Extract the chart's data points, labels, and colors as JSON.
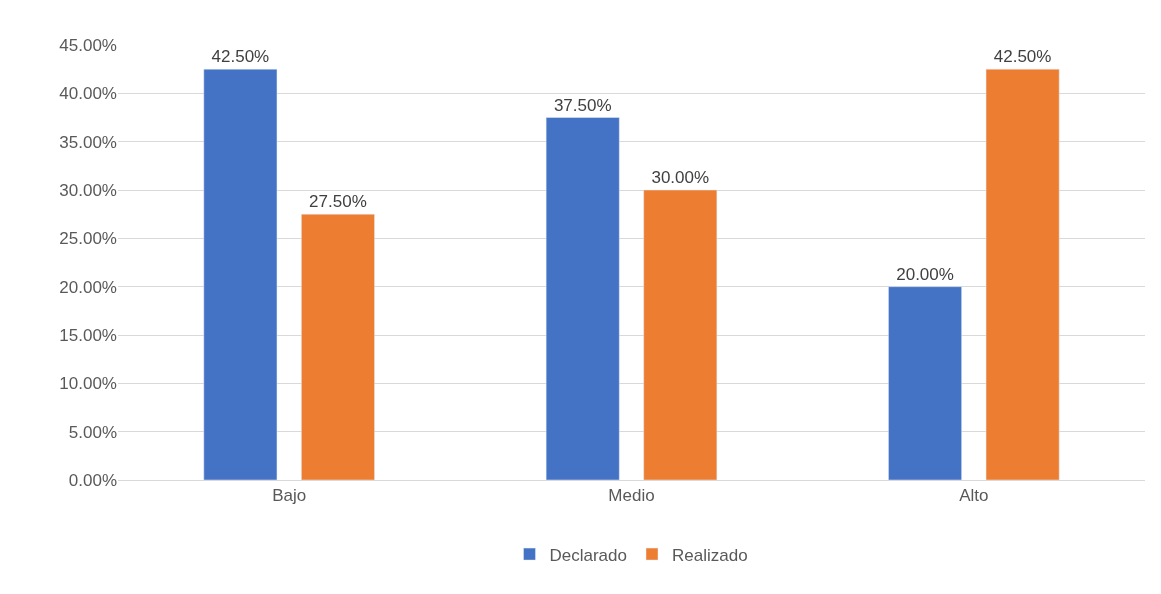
{
  "chart_data": {
    "type": "bar",
    "categories": [
      "Bajo",
      "Medio",
      "Alto"
    ],
    "series": [
      {
        "name": "Declarado",
        "color": "#4472c4",
        "values": [
          42.5,
          37.5,
          20
        ],
        "value_labels": [
          "42.50%",
          "37.50%",
          "20.00%"
        ]
      },
      {
        "name": "Realizado",
        "color": "#ed7d31",
        "values": [
          27.5,
          30,
          42.5
        ],
        "value_labels": [
          "27.50%",
          "30.00%",
          "42.50%"
        ]
      }
    ],
    "ylim": [
      0,
      45
    ],
    "yticks": [
      {
        "value": 0,
        "label": "0.00%"
      },
      {
        "value": 5,
        "label": "5.00%"
      },
      {
        "value": 10,
        "label": "10.00%"
      },
      {
        "value": 15,
        "label": "15.00%"
      },
      {
        "value": 20,
        "label": "20.00%"
      },
      {
        "value": 25,
        "label": "25.00%"
      },
      {
        "value": 30,
        "label": "30.00%"
      },
      {
        "value": 35,
        "label": "35.00%"
      },
      {
        "value": 40,
        "label": "40.00%"
      },
      {
        "value": 45,
        "label": "45.00%"
      }
    ],
    "grid": "y",
    "legend": "bottom"
  }
}
